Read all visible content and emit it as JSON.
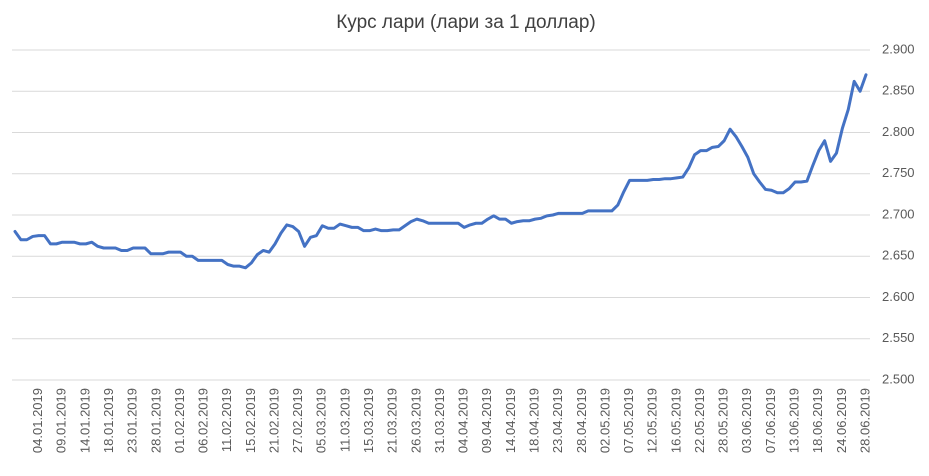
{
  "chart_data": {
    "type": "line",
    "title": "Курс лари (лари за 1 доллар)",
    "color": "#4472c4",
    "grid": true,
    "categories": [
      null,
      null,
      null,
      null,
      "04.01.2019",
      null,
      null,
      null,
      "09.01.2019",
      null,
      null,
      null,
      "14.01.2019",
      null,
      null,
      null,
      "18.01.2019",
      null,
      null,
      null,
      "23.01.2019",
      null,
      null,
      null,
      "28.01.2019",
      null,
      null,
      null,
      "01.02.2019",
      null,
      null,
      null,
      "06.02.2019",
      null,
      null,
      null,
      "11.02.2019",
      null,
      null,
      null,
      "15.02.2019",
      null,
      null,
      null,
      "21.02.2019",
      null,
      null,
      null,
      "27.02.2019",
      null,
      null,
      null,
      "05.03.2019",
      null,
      null,
      null,
      "11.03.2019",
      null,
      null,
      null,
      "15.03.2019",
      null,
      null,
      null,
      "21.03.2019",
      null,
      null,
      null,
      "26.03.2019",
      null,
      null,
      null,
      "31.03.2019",
      null,
      null,
      null,
      "04.04.2019",
      null,
      null,
      null,
      "09.04.2019",
      null,
      null,
      null,
      "14.04.2019",
      null,
      null,
      null,
      "18.04.2019",
      null,
      null,
      null,
      "23.04.2019",
      null,
      null,
      null,
      "28.04.2019",
      null,
      null,
      null,
      "02.05.2019",
      null,
      null,
      null,
      "07.05.2019",
      null,
      null,
      null,
      "12.05.2019",
      null,
      null,
      null,
      "16.05.2019",
      null,
      null,
      null,
      "22.05.2019",
      null,
      null,
      null,
      "28.05.2019",
      null,
      null,
      null,
      "03.06.2019",
      null,
      null,
      null,
      "07.06.2019",
      null,
      null,
      null,
      "13.06.2019",
      null,
      null,
      null,
      "18.06.2019",
      null,
      null,
      null,
      "24.06.2019",
      null,
      null,
      null,
      "28.06.2019"
    ],
    "values": [
      2.68,
      2.67,
      2.67,
      2.674,
      2.675,
      2.675,
      2.665,
      2.665,
      2.667,
      2.667,
      2.667,
      2.665,
      2.665,
      2.667,
      2.662,
      2.66,
      2.66,
      2.66,
      2.657,
      2.657,
      2.66,
      2.66,
      2.66,
      2.653,
      2.653,
      2.653,
      2.655,
      2.655,
      2.655,
      2.65,
      2.65,
      2.645,
      2.645,
      2.645,
      2.645,
      2.645,
      2.64,
      2.638,
      2.638,
      2.636,
      2.642,
      2.652,
      2.657,
      2.655,
      2.665,
      2.678,
      2.688,
      2.686,
      2.68,
      2.662,
      2.673,
      2.675,
      2.687,
      2.684,
      2.684,
      2.689,
      2.687,
      2.685,
      2.685,
      2.681,
      2.681,
      2.683,
      2.681,
      2.681,
      2.682,
      2.682,
      2.687,
      2.692,
      2.695,
      2.693,
      2.69,
      2.69,
      2.69,
      2.69,
      2.69,
      2.69,
      2.685,
      2.688,
      2.69,
      2.69,
      2.695,
      2.699,
      2.695,
      2.695,
      2.69,
      2.692,
      2.693,
      2.693,
      2.695,
      2.696,
      2.699,
      2.7,
      2.702,
      2.702,
      2.702,
      2.702,
      2.702,
      2.705,
      2.705,
      2.705,
      2.705,
      2.705,
      2.712,
      2.728,
      2.742,
      2.742,
      2.742,
      2.742,
      2.743,
      2.743,
      2.744,
      2.744,
      2.745,
      2.746,
      2.757,
      2.773,
      2.778,
      2.778,
      2.782,
      2.783,
      2.79,
      2.804,
      2.795,
      2.783,
      2.77,
      2.75,
      2.74,
      2.731,
      2.73,
      2.727,
      2.727,
      2.732,
      2.74,
      2.74,
      2.741,
      2.76,
      2.778,
      2.79,
      2.765,
      2.775,
      2.805,
      2.828,
      2.862,
      2.85,
      2.87
    ],
    "ylim": [
      2.5,
      2.9
    ],
    "yticks": [
      {
        "value": 2.5,
        "label": "2.500"
      },
      {
        "value": 2.55,
        "label": "2.550"
      },
      {
        "value": 2.6,
        "label": "2.600"
      },
      {
        "value": 2.65,
        "label": "2.650"
      },
      {
        "value": 2.7,
        "label": "2.700"
      },
      {
        "value": 2.75,
        "label": "2.750"
      },
      {
        "value": 2.8,
        "label": "2.800"
      },
      {
        "value": 2.85,
        "label": "2.850"
      },
      {
        "value": 2.9,
        "label": "2.900"
      }
    ]
  }
}
